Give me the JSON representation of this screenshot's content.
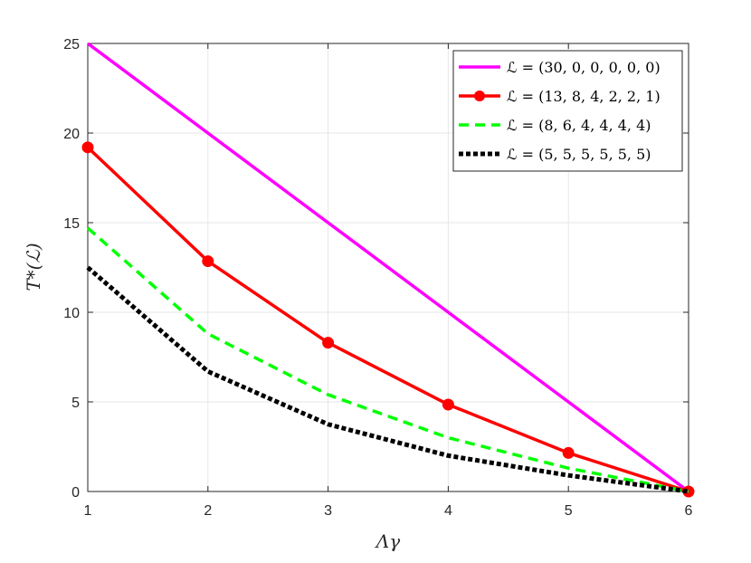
{
  "chart_data": {
    "type": "line",
    "title": "",
    "xlabel": "Λγ",
    "ylabel": "T*(ℒ)",
    "xlim": [
      1,
      6
    ],
    "ylim": [
      0,
      25
    ],
    "xticks": [
      1,
      2,
      3,
      4,
      5,
      6
    ],
    "yticks": [
      0,
      5,
      10,
      15,
      20,
      25
    ],
    "grid": true,
    "legend_position": "top-right",
    "x": [
      1,
      2,
      3,
      4,
      5,
      6
    ],
    "series": [
      {
        "name": "ℒ = (30, 0, 0, 0, 0, 0)",
        "values": [
          25,
          20,
          15,
          10,
          5,
          0
        ],
        "color": "#ff00ff",
        "style": "solid",
        "marker": "none"
      },
      {
        "name": "ℒ = (13, 8, 4, 2, 2, 1)",
        "values": [
          19.2,
          12.85,
          8.3,
          4.85,
          2.15,
          0
        ],
        "color": "#ff0000",
        "style": "solid",
        "marker": "circle"
      },
      {
        "name": "ℒ = (8, 6, 4, 4, 4, 4)",
        "values": [
          14.7,
          8.8,
          5.4,
          3.0,
          1.3,
          0
        ],
        "color": "#00ff00",
        "style": "dashed",
        "marker": "none"
      },
      {
        "name": "ℒ = (5, 5, 5, 5, 5, 5)",
        "values": [
          12.5,
          6.7,
          3.75,
          2.0,
          0.9,
          0
        ],
        "color": "#000000",
        "style": "dotted",
        "marker": "none"
      }
    ]
  }
}
